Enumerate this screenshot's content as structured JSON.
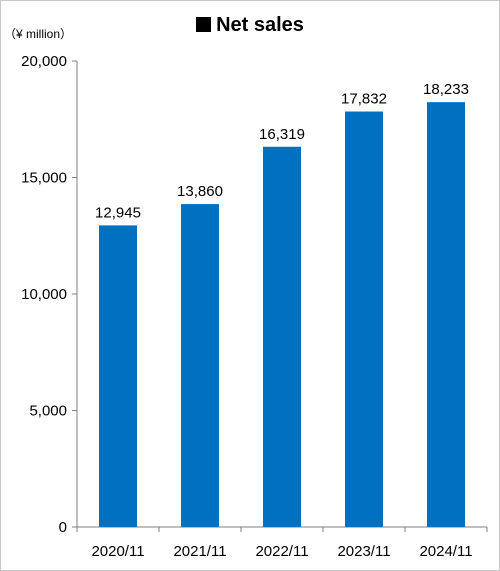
{
  "title": "Net sales",
  "unit_label": "（¥ million）",
  "colors": {
    "bar": "#0070c0",
    "axis": "#7f7f7f",
    "text": "#000000"
  },
  "chart_data": {
    "type": "bar",
    "title": "Net sales",
    "ylabel": "（¥ million）",
    "xlabel": "",
    "categories": [
      "2020/11",
      "2021/11",
      "2022/11",
      "2023/11",
      "2024/11"
    ],
    "values": [
      12945,
      13860,
      16319,
      17832,
      18233
    ],
    "value_labels": [
      "12,945",
      "13,860",
      "16,319",
      "17,832",
      "18,233"
    ],
    "ylim": [
      0,
      20000
    ],
    "yticks": [
      0,
      5000,
      10000,
      15000,
      20000
    ],
    "ytick_labels": [
      "0",
      "5,000",
      "10,000",
      "15,000",
      "20,000"
    ],
    "grid": false,
    "legend": "none"
  }
}
